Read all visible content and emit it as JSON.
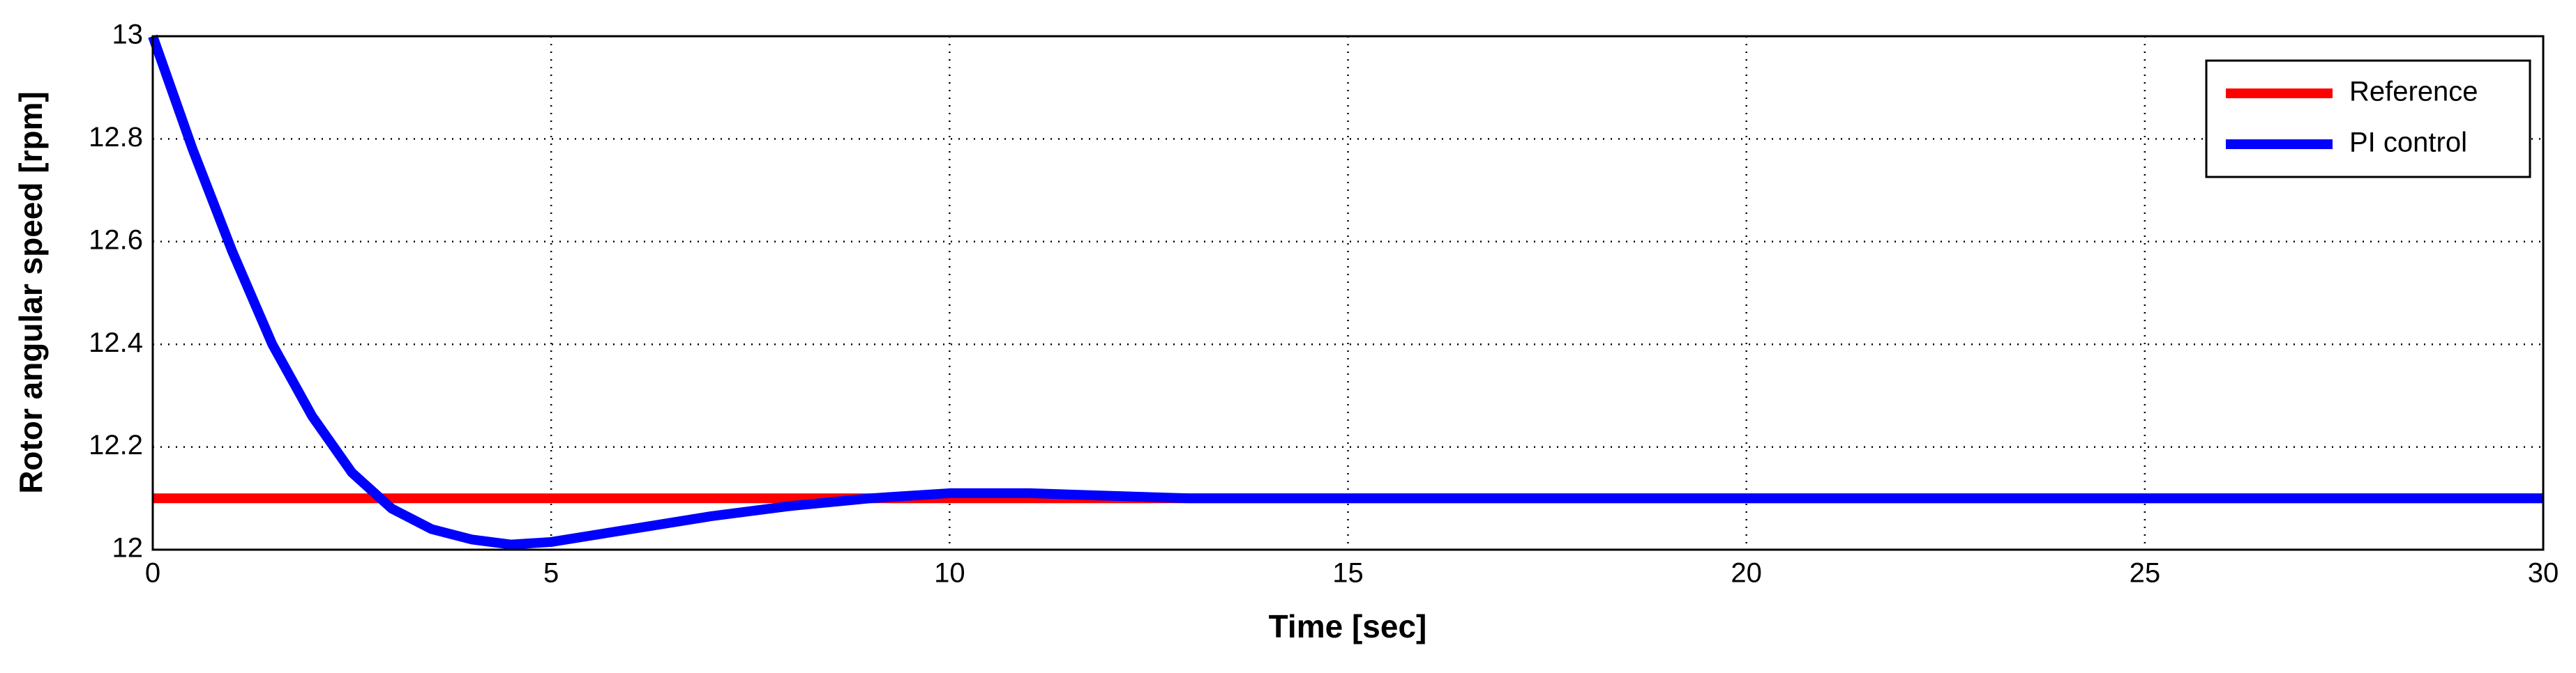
{
  "chart_data": {
    "type": "line",
    "xlabel": "Time [sec]",
    "ylabel": "Rotor angular speed [rpm]",
    "series": [
      {
        "name": "Reference",
        "color": "#ff0000",
        "x": [
          0,
          30
        ],
        "values": [
          12.1,
          12.1
        ]
      },
      {
        "name": "PI control",
        "color": "#0000ff",
        "x": [
          0,
          0.5,
          1,
          1.5,
          2,
          2.5,
          3,
          3.5,
          4,
          4.5,
          5,
          6,
          7,
          8,
          9,
          10,
          11,
          12,
          13,
          14,
          15,
          20,
          25,
          30
        ],
        "values": [
          13,
          12.78,
          12.58,
          12.4,
          12.26,
          12.15,
          12.08,
          12.04,
          12.02,
          12.01,
          12.015,
          12.04,
          12.065,
          12.085,
          12.1,
          12.11,
          12.11,
          12.105,
          12.1,
          12.1,
          12.1,
          12.1,
          12.1,
          12.1
        ]
      }
    ],
    "xlim": [
      0,
      30
    ],
    "xticks": [
      0,
      5,
      10,
      15,
      20,
      25,
      30
    ],
    "ylim": [
      12,
      13
    ],
    "yticks": [
      12,
      12.2,
      12.4,
      12.6,
      12.8,
      13
    ],
    "grid": true,
    "legend": "upper right"
  }
}
